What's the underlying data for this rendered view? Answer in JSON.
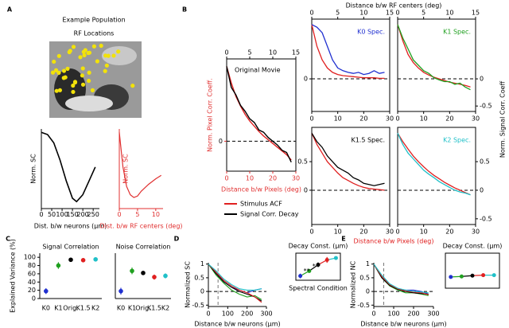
{
  "figure": {
    "panel_labels": [
      "A",
      "B",
      "C",
      "D",
      "E"
    ],
    "a_title": "Example Population",
    "a_subtitle": "RF Locations",
    "b_top_xlabel": "Distance b/w RF centers (deg)",
    "b_right_ylabel": "Norm. Signal Corr. Coeff",
    "b_bottom_xlabel": "Distance b/w Pixels (deg)"
  },
  "chart_data": [
    {
      "type": "line",
      "ylabel": "Norm. SC",
      "xlabel": "Dist. b/w neurons (μm)",
      "xlim": [
        0,
        280
      ],
      "ylim": [
        -0.1,
        1.05
      ],
      "xticks": [
        0,
        50,
        100,
        150,
        200,
        250
      ],
      "x": [
        0,
        30,
        60,
        90,
        120,
        150,
        170,
        200,
        230,
        260
      ],
      "series": [
        {
          "color": "#000000",
          "values": [
            1,
            0.97,
            0.85,
            0.6,
            0.3,
            0.05,
            0,
            0.1,
            0.3,
            0.5
          ]
        }
      ]
    },
    {
      "type": "line",
      "ylabel": "Norm. SC",
      "xlabel": "Dist. b/w RF centers (deg)",
      "label_color": "#e03030",
      "xlim": [
        0,
        12
      ],
      "ylim": [
        -0.1,
        1.05
      ],
      "xticks": [
        0,
        5,
        10
      ],
      "x": [
        0,
        0.5,
        1,
        2,
        3,
        4,
        5,
        6,
        8,
        10,
        11.5
      ],
      "series": [
        {
          "color": "#e03030",
          "values": [
            1,
            0.75,
            0.5,
            0.22,
            0.1,
            0.06,
            0.08,
            0.15,
            0.25,
            0.33,
            0.38
          ]
        }
      ]
    },
    {
      "type": "line",
      "title": "Original Movie",
      "ylabel": "Norm. Pixel Corr. Coeff.",
      "xlabel": "Distance b/w Pixels (deg)",
      "label_color": "#e03030",
      "xlim": [
        0,
        30
      ],
      "ylim": [
        -0.4,
        1.1
      ],
      "xticks": [
        0,
        10,
        20,
        30
      ],
      "yticks": [
        0
      ],
      "x2lim": [
        0,
        15
      ],
      "x2ticks": [
        0,
        5,
        10,
        15
      ],
      "zero_line": true,
      "x": [
        0,
        2,
        4,
        6,
        8,
        10,
        12,
        14,
        16,
        18,
        20,
        22,
        24,
        26,
        28
      ],
      "series": [
        {
          "name": "Stimulus ACF",
          "color": "#e02020",
          "values": [
            1,
            0.78,
            0.6,
            0.47,
            0.36,
            0.27,
            0.2,
            0.13,
            0.07,
            0.02,
            -0.03,
            -0.08,
            -0.13,
            -0.18,
            -0.25
          ]
        },
        {
          "name": "Signal Corr. Decay",
          "color": "#000000",
          "values": [
            1,
            0.72,
            0.62,
            0.48,
            0.4,
            0.3,
            0.25,
            0.15,
            0.12,
            0.05,
            0,
            -0.05,
            -0.12,
            -0.15,
            -0.28
          ]
        }
      ]
    },
    {
      "type": "line",
      "title": "K0 Spec.",
      "title_color": "#2030d0",
      "xlim": [
        0,
        30
      ],
      "ylim": [
        -0.6,
        1.1
      ],
      "xticks": [
        0,
        10,
        20,
        30
      ],
      "yticks": [
        0
      ],
      "x2lim": [
        0,
        15
      ],
      "x2ticks": [
        0,
        5,
        10,
        15
      ],
      "zero_line": true,
      "x": [
        0,
        2,
        4,
        6,
        8,
        10,
        12,
        14,
        16,
        18,
        20,
        22,
        24,
        26,
        28
      ],
      "series": [
        {
          "color": "#e02020",
          "values": [
            1,
            0.6,
            0.35,
            0.2,
            0.12,
            0.08,
            0.06,
            0.05,
            0.04,
            0.03,
            0.02,
            0.02,
            0.02,
            0.01,
            0.01
          ]
        },
        {
          "color": "#2030d0",
          "values": [
            1,
            0.95,
            0.85,
            0.6,
            0.35,
            0.2,
            0.15,
            0.12,
            0.1,
            0.12,
            0.08,
            0.1,
            0.15,
            0.1,
            0.12
          ]
        }
      ]
    },
    {
      "type": "line",
      "title": "K1 Spec.",
      "title_color": "#20a020",
      "xlim": [
        0,
        30
      ],
      "ylim": [
        -0.6,
        1.1
      ],
      "xticks": [
        0,
        10,
        20,
        30
      ],
      "y2lim": [
        -0.6,
        1.1
      ],
      "y2ticks": [
        0,
        -0.5
      ],
      "x2lim": [
        0,
        15
      ],
      "x2ticks": [
        0,
        5,
        10,
        15
      ],
      "zero_line": true,
      "x": [
        0,
        2,
        4,
        6,
        8,
        10,
        12,
        14,
        16,
        18,
        20,
        22,
        24,
        26,
        28
      ],
      "series": [
        {
          "color": "#e02020",
          "values": [
            1,
            0.7,
            0.45,
            0.3,
            0.2,
            0.12,
            0.07,
            0.03,
            0,
            -0.03,
            -0.06,
            -0.08,
            -0.1,
            -0.12,
            -0.15
          ]
        },
        {
          "color": "#20a020",
          "values": [
            1,
            0.75,
            0.55,
            0.35,
            0.25,
            0.15,
            0.1,
            0.02,
            -0.02,
            -0.05,
            -0.05,
            -0.1,
            -0.08,
            -0.15,
            -0.2
          ]
        }
      ]
    },
    {
      "type": "line",
      "title": "K1.5 Spec.",
      "title_color": "#000000",
      "xlim": [
        0,
        30
      ],
      "ylim": [
        -0.6,
        1.1
      ],
      "xticks": [
        0,
        10,
        20,
        30
      ],
      "yticks": [
        0.5,
        0
      ],
      "zero_line": true,
      "x": [
        0,
        2,
        4,
        6,
        8,
        10,
        12,
        14,
        16,
        18,
        20,
        22,
        24,
        26,
        28
      ],
      "series": [
        {
          "color": "#e02020",
          "values": [
            1,
            0.8,
            0.65,
            0.5,
            0.4,
            0.3,
            0.22,
            0.17,
            0.12,
            0.08,
            0.05,
            0.03,
            0.02,
            0.01,
            0
          ]
        },
        {
          "color": "#000000",
          "values": [
            1,
            0.85,
            0.75,
            0.6,
            0.5,
            0.4,
            0.35,
            0.3,
            0.22,
            0.18,
            0.12,
            0.1,
            0.08,
            0.1,
            0.12
          ]
        }
      ]
    },
    {
      "type": "line",
      "title": "K2 Spec.",
      "title_color": "#20c0c8",
      "xlim": [
        0,
        30
      ],
      "ylim": [
        -0.6,
        1.1
      ],
      "xticks": [
        0,
        10,
        20,
        30
      ],
      "y2lim": [
        -0.6,
        1.1
      ],
      "y2ticks": [
        0.5,
        0,
        -0.5
      ],
      "zero_line": true,
      "x": [
        0,
        2,
        4,
        6,
        8,
        10,
        12,
        14,
        16,
        18,
        20,
        22,
        24,
        26,
        28
      ],
      "series": [
        {
          "color": "#e02020",
          "values": [
            1,
            0.85,
            0.72,
            0.6,
            0.5,
            0.41,
            0.33,
            0.26,
            0.2,
            0.14,
            0.09,
            0.04,
            0,
            -0.04,
            -0.08
          ]
        },
        {
          "color": "#20c0c8",
          "values": [
            1,
            0.8,
            0.65,
            0.55,
            0.45,
            0.35,
            0.28,
            0.22,
            0.15,
            0.1,
            0.05,
            0,
            -0.03,
            -0.05,
            -0.08
          ]
        }
      ]
    },
    {
      "type": "errorbar",
      "title": "Signal Correlation",
      "ylabel": "Explained Variance (%)",
      "ylim": [
        0,
        110
      ],
      "yticks": [
        0,
        20,
        40,
        60,
        80,
        100
      ],
      "categories": [
        "K0",
        "K1",
        "Orig.",
        "K1.5",
        "K2"
      ],
      "values": [
        18,
        80,
        94,
        93,
        95
      ],
      "errors": [
        7,
        8,
        4,
        5,
        5
      ],
      "colors": [
        "#2030d0",
        "#20a020",
        "#000000",
        "#e02020",
        "#20c0c8"
      ]
    },
    {
      "type": "errorbar",
      "title": "Noise Correlation",
      "ylim": [
        0,
        110
      ],
      "categories": [
        "K0",
        "K1",
        "Orig.",
        "K1.5",
        "K2"
      ],
      "values": [
        18,
        67,
        62,
        52,
        55
      ],
      "errors": [
        8,
        8,
        5,
        6,
        6
      ],
      "colors": [
        "#2030d0",
        "#20a020",
        "#000000",
        "#e02020",
        "#20c0c8"
      ]
    },
    {
      "type": "line",
      "ylabel": "Normalized SC",
      "xlabel": "Distance b/w neurons (μm)",
      "xlim": [
        0,
        300
      ],
      "ylim": [
        -0.55,
        1.05
      ],
      "xticks": [
        0,
        100,
        200,
        300
      ],
      "yticks": [
        1,
        0.5,
        0,
        -0.5
      ],
      "zero_line": true,
      "vline": 50,
      "x": [
        0,
        40,
        80,
        120,
        160,
        200,
        240,
        275
      ],
      "series": [
        {
          "color": "#2030d0",
          "values": [
            1,
            0.7,
            0.35,
            0.15,
            0.05,
            -0.05,
            0.05,
            0.1
          ]
        },
        {
          "color": "#20a020",
          "values": [
            1,
            0.6,
            0.3,
            0.05,
            -0.1,
            -0.2,
            -0.15,
            -0.3
          ]
        },
        {
          "color": "#000000",
          "values": [
            1,
            0.65,
            0.35,
            0.15,
            0,
            -0.1,
            -0.2,
            -0.35
          ]
        },
        {
          "color": "#e02020",
          "values": [
            1,
            0.7,
            0.4,
            0.2,
            0.05,
            -0.05,
            -0.2,
            -0.4
          ]
        },
        {
          "color": "#20c0c8",
          "values": [
            1,
            0.75,
            0.45,
            0.25,
            0.1,
            0.05,
            0.05,
            0.1
          ]
        }
      ]
    },
    {
      "type": "errorbar",
      "title": "Decay Const. (μm)",
      "xlabel": "Spectral Condition",
      "ylim": [
        0,
        140
      ],
      "connect": true,
      "values": [
        22,
        48,
        80,
        105,
        115
      ],
      "errors": [
        12,
        10,
        12,
        15,
        8
      ],
      "annotations": [
        "**",
        "*"
      ],
      "colors": [
        "#2030d0",
        "#20a020",
        "#000000",
        "#e02020",
        "#20c0c8"
      ]
    },
    {
      "type": "line",
      "ylabel": "Normalized NC",
      "xlabel": "Distance b/w neurons (μm)",
      "xlim": [
        0,
        300
      ],
      "ylim": [
        -0.55,
        1.05
      ],
      "xticks": [
        0,
        100,
        200,
        300
      ],
      "yticks": [
        1,
        0.5,
        0,
        -0.5
      ],
      "zero_line": true,
      "vline": 50,
      "x": [
        0,
        40,
        80,
        120,
        160,
        200,
        240,
        275
      ],
      "series": [
        {
          "color": "#2030d0",
          "values": [
            1,
            0.55,
            0.25,
            0.1,
            0.05,
            0.05,
            0,
            -0.1
          ]
        },
        {
          "color": "#20a020",
          "values": [
            1,
            0.5,
            0.2,
            0.05,
            -0.05,
            -0.05,
            -0.1,
            -0.15
          ]
        },
        {
          "color": "#000000",
          "values": [
            1,
            0.5,
            0.22,
            0.08,
            0,
            -0.05,
            -0.08,
            -0.1
          ]
        },
        {
          "color": "#e02020",
          "values": [
            1,
            0.55,
            0.25,
            0.1,
            0.02,
            -0.02,
            -0.05,
            -0.12
          ]
        },
        {
          "color": "#20c0c8",
          "values": [
            1,
            0.6,
            0.28,
            0.12,
            0.05,
            0,
            -0.02,
            -0.05
          ]
        }
      ]
    },
    {
      "type": "errorbar",
      "title": "Decay Const. (μm)",
      "ylim": [
        0,
        140
      ],
      "connect": true,
      "values": [
        45,
        47,
        50,
        52,
        52
      ],
      "errors": [
        4,
        3,
        3,
        3,
        3
      ],
      "colors": [
        "#2030d0",
        "#20a020",
        "#000000",
        "#e02020",
        "#20c0c8"
      ]
    }
  ]
}
